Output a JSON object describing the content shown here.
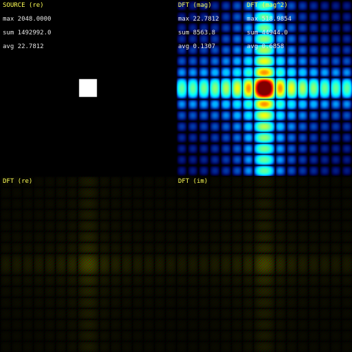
{
  "panels": {
    "source": {
      "title": "SOURCE (re)",
      "max": "max 2048.0000",
      "sum": "sum 1492992.0",
      "avg": "avg 22.7812"
    },
    "mag": {
      "title": "DFT (mag)",
      "max": "max 22.7812",
      "sum": "sum 8563.8",
      "avg": "avg 0.1307"
    },
    "mag2": {
      "title": "DFT (mag^2)",
      "max": "max 518.9854",
      "sum": "sum 44944.0",
      "avg": "avg 0.6858"
    },
    "re": {
      "title": "DFT (re)"
    },
    "im": {
      "title": "DFT (im)"
    }
  },
  "colors": {
    "title": "#ffff55",
    "stat": "#e8e8e8",
    "background": "#000000",
    "positive": "#00ff00",
    "negative": "#ff0000"
  }
}
